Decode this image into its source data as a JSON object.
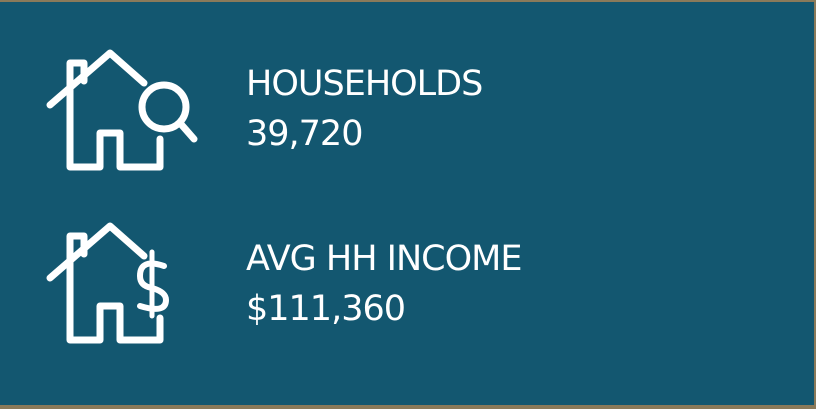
{
  "stats": [
    {
      "label": "HOUSEHOLDS",
      "value": "39,720"
    },
    {
      "label": "AVG HH INCOME",
      "value": "$111,360"
    }
  ]
}
